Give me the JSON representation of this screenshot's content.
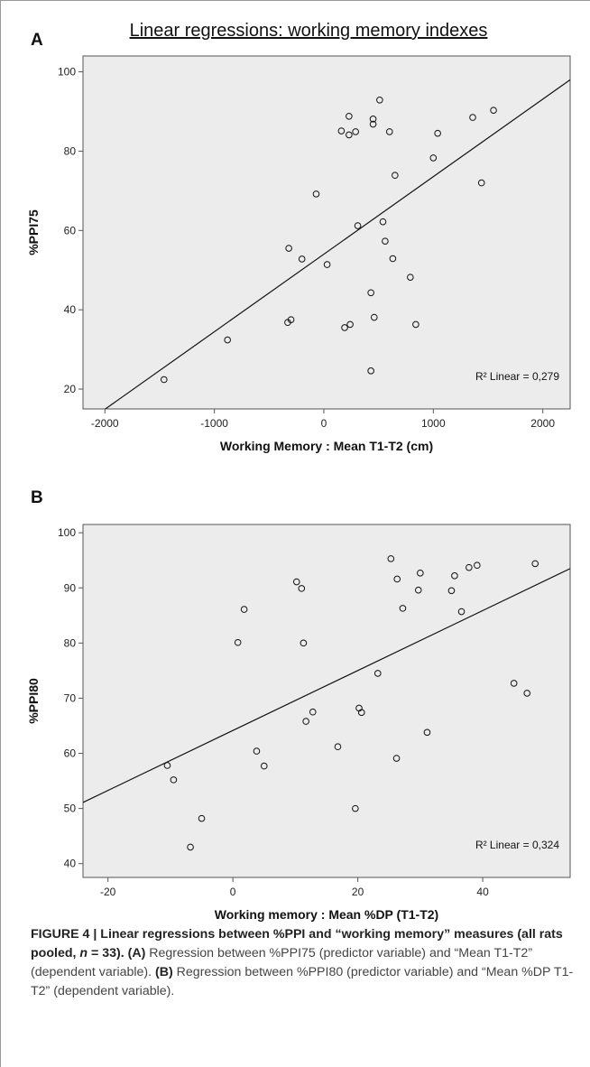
{
  "figure": {
    "title": "Linear regressions: working memory indexes"
  },
  "chart_data": [
    {
      "type": "scatter",
      "panel_label": "A",
      "xlabel": "Working Memory : Mean T1-T2 (cm)",
      "ylabel": "%PPI75",
      "xlim": [
        -2200,
        2250
      ],
      "ylim": [
        15,
        104
      ],
      "xticks": [
        -2000,
        -1000,
        0,
        1000,
        2000
      ],
      "yticks": [
        20,
        40,
        60,
        80,
        100
      ],
      "x_tick_labels": [
        "-2000",
        "-1000",
        "0",
        "1000",
        "2000"
      ],
      "y_tick_labels": [
        "20",
        "40",
        "60",
        "80",
        "100"
      ],
      "fit_line": {
        "x": [
          -2200,
          2250
        ],
        "y": [
          11,
          98
        ]
      },
      "r2_label": "R² Linear = 0,279",
      "points": [
        {
          "x": -1460,
          "y": 22.4
        },
        {
          "x": -880,
          "y": 32.4
        },
        {
          "x": -330,
          "y": 36.8
        },
        {
          "x": -300,
          "y": 37.5
        },
        {
          "x": -320,
          "y": 55.5
        },
        {
          "x": -200,
          "y": 52.8
        },
        {
          "x": -70,
          "y": 69.2
        },
        {
          "x": 30,
          "y": 51.4
        },
        {
          "x": 160,
          "y": 85.1
        },
        {
          "x": 190,
          "y": 35.5
        },
        {
          "x": 230,
          "y": 88.8
        },
        {
          "x": 230,
          "y": 84.1
        },
        {
          "x": 240,
          "y": 36.3
        },
        {
          "x": 290,
          "y": 84.9
        },
        {
          "x": 310,
          "y": 61.2
        },
        {
          "x": 430,
          "y": 44.3
        },
        {
          "x": 430,
          "y": 24.6
        },
        {
          "x": 450,
          "y": 88.1
        },
        {
          "x": 450,
          "y": 86.8
        },
        {
          "x": 460,
          "y": 38.1
        },
        {
          "x": 510,
          "y": 92.9
        },
        {
          "x": 540,
          "y": 62.2
        },
        {
          "x": 560,
          "y": 57.3
        },
        {
          "x": 600,
          "y": 84.9
        },
        {
          "x": 630,
          "y": 52.9
        },
        {
          "x": 650,
          "y": 73.9
        },
        {
          "x": 790,
          "y": 48.2
        },
        {
          "x": 840,
          "y": 36.3
        },
        {
          "x": 1000,
          "y": 78.3
        },
        {
          "x": 1040,
          "y": 84.5
        },
        {
          "x": 1360,
          "y": 88.5
        },
        {
          "x": 1440,
          "y": 72.0
        },
        {
          "x": 1550,
          "y": 90.3
        }
      ]
    },
    {
      "type": "scatter",
      "panel_label": "B",
      "xlabel": "Working memory : Mean %DP (T1-T2)",
      "ylabel": "%PPI80",
      "xlim": [
        -24,
        54
      ],
      "ylim": [
        37.5,
        101.5
      ],
      "xticks": [
        -20,
        0,
        20,
        40
      ],
      "yticks": [
        40,
        50,
        60,
        70,
        80,
        90,
        100
      ],
      "x_tick_labels": [
        "-20",
        "0",
        "20",
        "40"
      ],
      "y_tick_labels": [
        "40",
        "50",
        "60",
        "70",
        "80",
        "90",
        "100"
      ],
      "fit_line": {
        "x": [
          -24,
          54
        ],
        "y": [
          51.1,
          93.5
        ]
      },
      "r2_label": "R² Linear = 0,324",
      "points": [
        {
          "x": -10.5,
          "y": 57.8
        },
        {
          "x": -9.5,
          "y": 55.2
        },
        {
          "x": -6.8,
          "y": 43.0
        },
        {
          "x": -5.0,
          "y": 48.2
        },
        {
          "x": 0.8,
          "y": 80.1
        },
        {
          "x": 1.8,
          "y": 86.1
        },
        {
          "x": 3.8,
          "y": 60.4
        },
        {
          "x": 5.0,
          "y": 57.7
        },
        {
          "x": 10.2,
          "y": 91.1
        },
        {
          "x": 11.0,
          "y": 89.9
        },
        {
          "x": 11.3,
          "y": 80.0
        },
        {
          "x": 11.7,
          "y": 65.8
        },
        {
          "x": 12.8,
          "y": 67.5
        },
        {
          "x": 16.8,
          "y": 61.2
        },
        {
          "x": 19.6,
          "y": 50.0
        },
        {
          "x": 20.2,
          "y": 68.2
        },
        {
          "x": 20.6,
          "y": 67.4
        },
        {
          "x": 23.2,
          "y": 74.5
        },
        {
          "x": 25.3,
          "y": 95.3
        },
        {
          "x": 26.2,
          "y": 59.1
        },
        {
          "x": 26.3,
          "y": 91.6
        },
        {
          "x": 27.2,
          "y": 86.3
        },
        {
          "x": 29.7,
          "y": 89.6
        },
        {
          "x": 30.0,
          "y": 92.7
        },
        {
          "x": 31.1,
          "y": 63.8
        },
        {
          "x": 35.0,
          "y": 89.5
        },
        {
          "x": 35.5,
          "y": 92.2
        },
        {
          "x": 36.6,
          "y": 85.7
        },
        {
          "x": 37.8,
          "y": 93.7
        },
        {
          "x": 39.1,
          "y": 94.1
        },
        {
          "x": 45.0,
          "y": 72.7
        },
        {
          "x": 47.1,
          "y": 70.9
        },
        {
          "x": 48.4,
          "y": 94.4
        }
      ]
    }
  ],
  "caption": {
    "lead": "FIGURE 4 | Linear regressions between %PPI and “working memory” measures (all rats pooled, ",
    "n_var": "n",
    "n_eq": " = 33). ",
    "label_a": "(A)",
    "text_a": " Regression between %PPI75 (predictor variable) and “Mean T1-T2” (dependent variable). ",
    "label_b": "(B)",
    "text_b": " Regression between %PPI80 (predictor variable) and “Mean %DP T1-T2” (dependent variable)."
  }
}
